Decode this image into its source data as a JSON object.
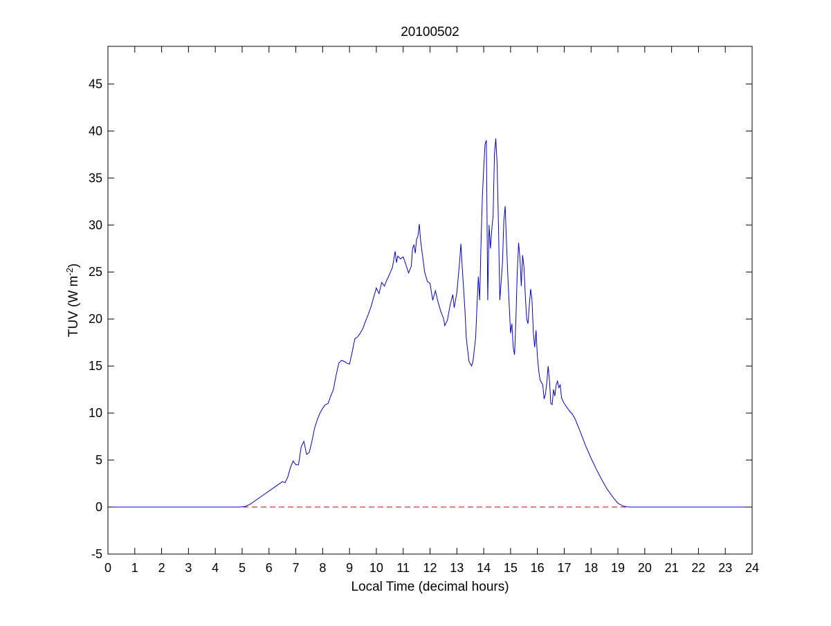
{
  "chart_data": {
    "type": "line",
    "title": "20100502",
    "xlabel": "Local Time (decimal hours)",
    "ylabel": {
      "main": "TUV (W m",
      "sup": "-2",
      "close": ")"
    },
    "xlim": [
      0,
      24
    ],
    "ylim": [
      -5,
      49
    ],
    "xticks": [
      0,
      1,
      2,
      3,
      4,
      5,
      6,
      7,
      8,
      9,
      10,
      11,
      12,
      13,
      14,
      15,
      16,
      17,
      18,
      19,
      20,
      21,
      22,
      23,
      24
    ],
    "yticks": [
      -5,
      0,
      5,
      10,
      15,
      20,
      25,
      30,
      35,
      40,
      45
    ],
    "grid": false,
    "colors": {
      "series": "#0000cc",
      "reference": "#cc0000",
      "axes": "#000000"
    },
    "series": [
      {
        "style": "solid",
        "color": "#0000cc",
        "points": [
          [
            0,
            0
          ],
          [
            4.9,
            0
          ],
          [
            5.1,
            0.05
          ],
          [
            5.3,
            0.3
          ],
          [
            5.5,
            0.7
          ],
          [
            5.8,
            1.3
          ],
          [
            6.1,
            1.9
          ],
          [
            6.4,
            2.5
          ],
          [
            6.5,
            2.7
          ],
          [
            6.6,
            2.6
          ],
          [
            6.7,
            3.2
          ],
          [
            6.8,
            4.2
          ],
          [
            6.9,
            4.9
          ],
          [
            7.0,
            4.5
          ],
          [
            7.1,
            4.5
          ],
          [
            7.2,
            6.4
          ],
          [
            7.3,
            7.0
          ],
          [
            7.4,
            5.6
          ],
          [
            7.5,
            5.8
          ],
          [
            7.6,
            7.0
          ],
          [
            7.7,
            8.4
          ],
          [
            7.8,
            9.3
          ],
          [
            7.9,
            10.0
          ],
          [
            8.0,
            10.5
          ],
          [
            8.1,
            10.9
          ],
          [
            8.2,
            11.0
          ],
          [
            8.3,
            11.8
          ],
          [
            8.4,
            12.5
          ],
          [
            8.5,
            14.0
          ],
          [
            8.6,
            15.3
          ],
          [
            8.7,
            15.6
          ],
          [
            8.8,
            15.5
          ],
          [
            8.9,
            15.3
          ],
          [
            9.0,
            15.2
          ],
          [
            9.1,
            16.5
          ],
          [
            9.2,
            17.9
          ],
          [
            9.3,
            18.1
          ],
          [
            9.4,
            18.5
          ],
          [
            9.5,
            19.0
          ],
          [
            9.6,
            19.8
          ],
          [
            9.7,
            20.5
          ],
          [
            9.8,
            21.3
          ],
          [
            9.9,
            22.3
          ],
          [
            10.0,
            23.3
          ],
          [
            10.1,
            22.7
          ],
          [
            10.2,
            23.9
          ],
          [
            10.3,
            23.5
          ],
          [
            10.4,
            24.2
          ],
          [
            10.5,
            24.8
          ],
          [
            10.6,
            25.5
          ],
          [
            10.7,
            27.2
          ],
          [
            10.75,
            26.0
          ],
          [
            10.8,
            26.7
          ],
          [
            10.9,
            26.4
          ],
          [
            11.0,
            26.6
          ],
          [
            11.1,
            25.8
          ],
          [
            11.2,
            24.9
          ],
          [
            11.3,
            25.6
          ],
          [
            11.35,
            27.5
          ],
          [
            11.4,
            27.9
          ],
          [
            11.45,
            27.0
          ],
          [
            11.5,
            28.5
          ],
          [
            11.55,
            28.8
          ],
          [
            11.6,
            30.1
          ],
          [
            11.65,
            28.3
          ],
          [
            11.7,
            27.2
          ],
          [
            11.8,
            25.0
          ],
          [
            11.9,
            24.0
          ],
          [
            12.0,
            23.8
          ],
          [
            12.1,
            22.0
          ],
          [
            12.2,
            23.0
          ],
          [
            12.3,
            21.8
          ],
          [
            12.4,
            20.8
          ],
          [
            12.5,
            20.1
          ],
          [
            12.55,
            19.3
          ],
          [
            12.65,
            19.9
          ],
          [
            12.75,
            21.5
          ],
          [
            12.85,
            22.6
          ],
          [
            12.9,
            21.2
          ],
          [
            13.0,
            22.8
          ],
          [
            13.1,
            26.0
          ],
          [
            13.15,
            28.0
          ],
          [
            13.2,
            25.5
          ],
          [
            13.3,
            21.0
          ],
          [
            13.35,
            18.0
          ],
          [
            13.45,
            15.5
          ],
          [
            13.55,
            15.0
          ],
          [
            13.6,
            15.5
          ],
          [
            13.7,
            18.0
          ],
          [
            13.75,
            21.5
          ],
          [
            13.8,
            24.5
          ],
          [
            13.85,
            22.0
          ],
          [
            13.9,
            28.0
          ],
          [
            13.95,
            33.0
          ],
          [
            14.0,
            36.0
          ],
          [
            14.05,
            38.6
          ],
          [
            14.1,
            39.0
          ],
          [
            14.12,
            32.0
          ],
          [
            14.15,
            22.0
          ],
          [
            14.2,
            30.0
          ],
          [
            14.25,
            27.5
          ],
          [
            14.3,
            29.5
          ],
          [
            14.35,
            31.0
          ],
          [
            14.4,
            37.5
          ],
          [
            14.45,
            39.2
          ],
          [
            14.5,
            36.5
          ],
          [
            14.55,
            30.0
          ],
          [
            14.6,
            22.0
          ],
          [
            14.7,
            26.0
          ],
          [
            14.75,
            30.5
          ],
          [
            14.8,
            32.0
          ],
          [
            14.85,
            28.0
          ],
          [
            14.9,
            24.5
          ],
          [
            14.95,
            21.5
          ],
          [
            15.0,
            18.5
          ],
          [
            15.05,
            19.5
          ],
          [
            15.1,
            17.0
          ],
          [
            15.15,
            16.2
          ],
          [
            15.2,
            20.0
          ],
          [
            15.25,
            25.0
          ],
          [
            15.3,
            28.1
          ],
          [
            15.35,
            26.5
          ],
          [
            15.4,
            23.5
          ],
          [
            15.45,
            26.8
          ],
          [
            15.5,
            25.5
          ],
          [
            15.55,
            22.5
          ],
          [
            15.6,
            20.0
          ],
          [
            15.65,
            19.5
          ],
          [
            15.7,
            21.5
          ],
          [
            15.75,
            23.2
          ],
          [
            15.8,
            22.0
          ],
          [
            15.85,
            18.5
          ],
          [
            15.9,
            17.0
          ],
          [
            15.95,
            18.8
          ],
          [
            16.0,
            16.0
          ],
          [
            16.05,
            14.5
          ],
          [
            16.1,
            13.5
          ],
          [
            16.2,
            13.0
          ],
          [
            16.25,
            11.5
          ],
          [
            16.3,
            12.0
          ],
          [
            16.35,
            13.2
          ],
          [
            16.4,
            15.0
          ],
          [
            16.45,
            13.5
          ],
          [
            16.5,
            11.0
          ],
          [
            16.55,
            10.9
          ],
          [
            16.6,
            12.5
          ],
          [
            16.65,
            11.8
          ],
          [
            16.7,
            13.0
          ],
          [
            16.75,
            13.4
          ],
          [
            16.8,
            12.7
          ],
          [
            16.85,
            13.0
          ],
          [
            16.9,
            11.6
          ],
          [
            17.0,
            11.0
          ],
          [
            17.1,
            10.6
          ],
          [
            17.2,
            10.2
          ],
          [
            17.3,
            9.9
          ],
          [
            17.4,
            9.4
          ],
          [
            17.6,
            8.0
          ],
          [
            17.8,
            6.5
          ],
          [
            18.0,
            5.2
          ],
          [
            18.2,
            4.0
          ],
          [
            18.4,
            2.9
          ],
          [
            18.6,
            1.9
          ],
          [
            18.8,
            1.1
          ],
          [
            19.0,
            0.4
          ],
          [
            19.2,
            0.1
          ],
          [
            19.4,
            0
          ],
          [
            24,
            0
          ]
        ]
      },
      {
        "style": "dashed",
        "color": "#cc0000",
        "points": [
          [
            0,
            0
          ],
          [
            24,
            0
          ]
        ]
      }
    ]
  }
}
